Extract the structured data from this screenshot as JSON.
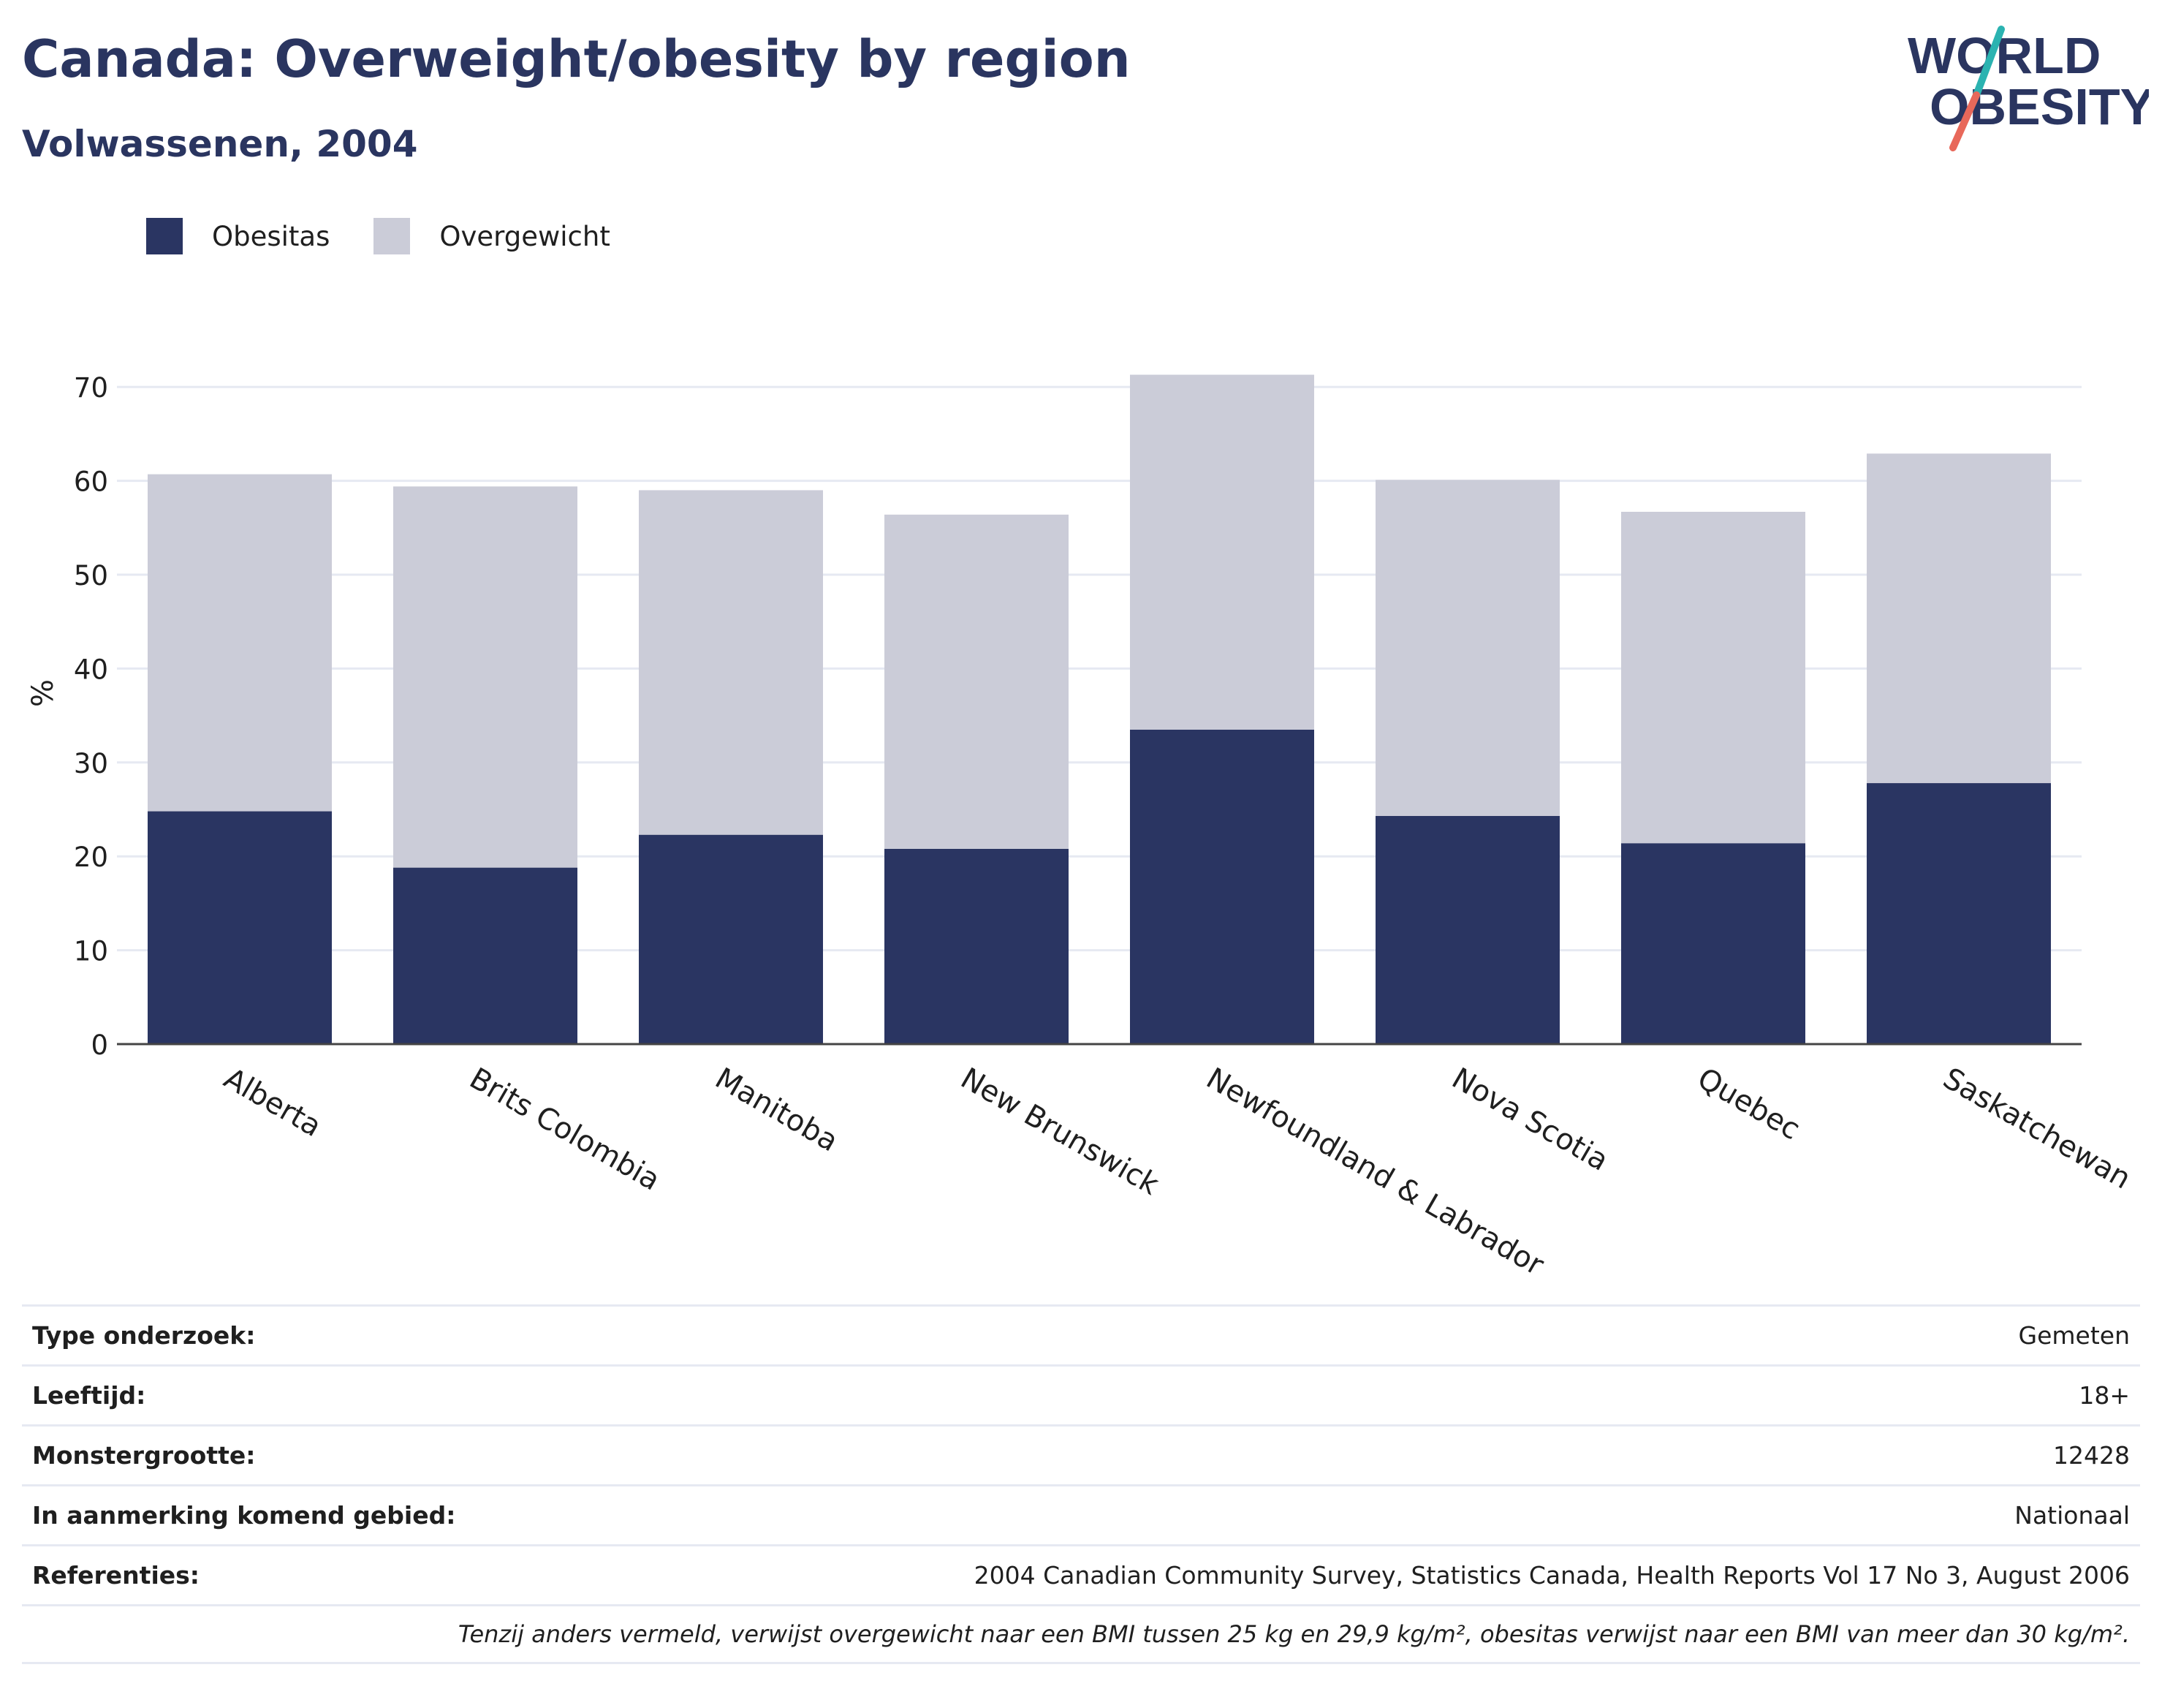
{
  "header": {
    "title": "Canada: Overweight/obesity by region",
    "subtitle": "Volwassenen, 2004"
  },
  "logo": {
    "line1": "WORLD",
    "line2": "OBESITY",
    "colors": {
      "text": "#2a3560",
      "slash_top": "#2bb3b1",
      "slash_bottom": "#e8685a"
    }
  },
  "colors": {
    "obesitas": "#2a3562",
    "overgewicht": "#cbccd8",
    "grid": "#e6e9f2",
    "axis": "#444444"
  },
  "chart_data": {
    "type": "bar",
    "stacked": true,
    "categories": [
      "Alberta",
      "Brits Colombia",
      "Manitoba",
      "New Brunswick",
      "Newfoundland & Labrador",
      "Nova Scotia",
      "Quebec",
      "Saskatchewan"
    ],
    "series": [
      {
        "name": "Obesitas",
        "color": "#2a3562",
        "values": [
          24.8,
          18.8,
          22.3,
          20.8,
          33.5,
          24.3,
          21.4,
          27.8
        ]
      },
      {
        "name": "Overgewicht",
        "color": "#cbccd8",
        "values": [
          35.9,
          40.6,
          36.7,
          35.6,
          37.8,
          35.8,
          35.3,
          35.1
        ]
      }
    ],
    "ylabel": "%",
    "xlabel": "",
    "ylim": [
      0,
      75
    ],
    "yticks": [
      0,
      10,
      20,
      30,
      40,
      50,
      60,
      70
    ],
    "grid": true,
    "legend": "top-left"
  },
  "info_table": {
    "rows": [
      {
        "label": "Type onderzoek:",
        "value": "Gemeten"
      },
      {
        "label": "Leeftijd:",
        "value": "18+"
      },
      {
        "label": "Monstergrootte:",
        "value": "12428"
      },
      {
        "label": "In aanmerking komend gebied:",
        "value": "Nationaal"
      },
      {
        "label": "Referenties:",
        "value": "2004 Canadian Community Survey, Statistics Canada, Health Reports Vol 17 No 3, August 2006"
      }
    ],
    "note": "Tenzij anders vermeld, verwijst overgewicht naar een BMI tussen 25 kg en 29,9 kg/m², obesitas verwijst naar een BMI van meer dan 30 kg/m²."
  }
}
